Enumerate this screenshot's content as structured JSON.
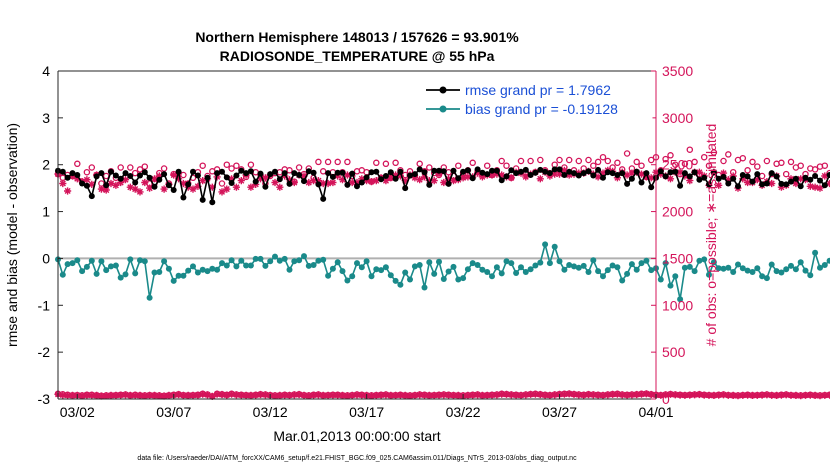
{
  "chart_data": {
    "type": "line",
    "title_line1": "Northern Hemisphere 148013 / 157626 = 93.901%",
    "title_line2": "RADIOSONDE_TEMPERATURE @ 55 hPa",
    "xlabel": "Mar.01,2013 00:00:00 start",
    "ylabel_left": "rmse and bias (model - observation)",
    "ylabel_right": "# of obs: o=possible; ∗=assimilated",
    "footnote": "data file: /Users/raeder/DAI/ATM_forcXX/CAM6_setup/f.e21.FHIST_BGC.f09_025.CAM6assim.011/Diags_NTrS_2013-03/obs_diag_output.nc",
    "xlim": [
      0,
      31
    ],
    "xticks": [
      1,
      6,
      11,
      16,
      21,
      26,
      31
    ],
    "xtick_labels": [
      "03/02",
      "03/07",
      "03/12",
      "03/17",
      "03/22",
      "03/27",
      "04/01"
    ],
    "ylim_left": [
      -3,
      4
    ],
    "yticks_left": [
      "-3",
      "-2",
      "-1",
      "0",
      "1",
      "2",
      "3",
      "4"
    ],
    "ylim_right": [
      0,
      3500
    ],
    "yticks_right": [
      "0",
      "500",
      "1000",
      "1500",
      "2000",
      "2500",
      "3000",
      "3500"
    ],
    "x_step_days": 0.25,
    "colors": {
      "rmse": "#000000",
      "bias": "#1a8a8a",
      "obs": "#d4145a",
      "zero_line": "#b0b0b0"
    },
    "legend": {
      "position": "top-right",
      "items": [
        {
          "label": "rmse grand pr = 1.7962",
          "series": "rmse"
        },
        {
          "label": "bias grand pr = -0.19128",
          "series": "bias"
        }
      ]
    },
    "series": [
      {
        "name": "rmse grand pr = 1.7962",
        "axis": "left",
        "values": [
          1.87,
          1.85,
          1.72,
          1.82,
          1.78,
          1.6,
          1.55,
          1.33,
          1.75,
          1.82,
          1.56,
          1.85,
          1.77,
          1.7,
          1.82,
          1.76,
          1.62,
          1.77,
          1.84,
          1.72,
          1.53,
          1.68,
          1.8,
          1.56,
          1.46,
          1.85,
          1.3,
          1.58,
          1.85,
          1.77,
          1.25,
          1.72,
          1.2,
          1.82,
          1.85,
          1.73,
          1.61,
          1.77,
          1.87,
          1.82,
          1.86,
          1.64,
          1.81,
          1.53,
          1.8,
          1.85,
          1.69,
          1.82,
          1.59,
          1.82,
          1.78,
          1.65,
          1.86,
          1.83,
          1.58,
          1.27,
          1.82,
          1.74,
          1.83,
          1.83,
          1.57,
          1.81,
          1.54,
          1.62,
          1.73,
          1.84,
          1.85,
          1.69,
          1.76,
          1.84,
          1.7,
          1.85,
          1.5,
          1.77,
          1.8,
          1.9,
          1.84,
          1.57,
          1.87,
          1.87,
          1.86,
          1.59,
          1.87,
          1.71,
          1.85,
          1.88,
          1.71,
          1.9,
          1.83,
          1.8,
          1.87,
          1.87,
          1.67,
          1.75,
          1.88,
          1.82,
          1.85,
          1.89,
          1.78,
          1.83,
          1.89,
          1.85,
          1.82,
          1.9,
          1.9,
          1.78,
          1.85,
          1.82,
          1.77,
          1.82,
          1.86,
          1.77,
          1.89,
          1.72,
          1.84,
          1.82,
          1.78,
          1.82,
          1.59,
          1.7,
          1.85,
          1.62,
          1.82,
          1.52,
          1.72,
          1.86,
          1.75,
          1.84,
          1.85,
          1.55,
          1.82,
          1.75,
          1.84,
          1.68,
          1.72,
          1.58,
          1.84,
          1.7,
          1.74,
          1.6,
          1.7,
          1.54,
          1.78,
          1.75,
          1.64,
          1.8,
          1.58,
          1.6,
          1.82,
          1.75,
          1.59,
          1.58,
          1.64,
          1.7,
          1.54,
          1.72,
          1.68,
          1.76,
          1.66,
          1.56,
          1.78,
          1.72,
          1.8,
          1.85,
          1.9,
          1.94
        ]
      },
      {
        "name": "bias grand pr = -0.19128",
        "axis": "left",
        "values": [
          -0.02,
          -0.35,
          -0.12,
          -0.1,
          -0.04,
          -0.27,
          -0.18,
          -0.05,
          -0.33,
          -0.06,
          -0.25,
          -0.17,
          -0.15,
          -0.41,
          -0.34,
          -0.02,
          -0.32,
          -0.04,
          -0.06,
          -0.84,
          -0.3,
          -0.29,
          -0.06,
          -0.22,
          -0.48,
          -0.37,
          -0.37,
          -0.26,
          -0.17,
          -0.3,
          -0.24,
          -0.27,
          -0.22,
          -0.24,
          -0.1,
          -0.15,
          -0.04,
          -0.17,
          -0.05,
          -0.15,
          -0.15,
          -0.01,
          -0.01,
          -0.16,
          -0.06,
          0.04,
          -0.05,
          -0.01,
          -0.24,
          -0.06,
          -0.04,
          0.05,
          -0.16,
          -0.14,
          -0.05,
          -0.03,
          -0.37,
          -0.22,
          -0.08,
          -0.27,
          -0.47,
          -0.38,
          -0.1,
          -0.19,
          -0.06,
          -0.38,
          -0.23,
          -0.25,
          -0.19,
          -0.36,
          -0.48,
          -0.56,
          -0.3,
          -0.45,
          -0.17,
          -0.14,
          -0.62,
          -0.08,
          -0.33,
          -0.07,
          -0.44,
          -0.28,
          -0.18,
          -0.45,
          -0.42,
          -0.23,
          -0.1,
          -0.14,
          -0.24,
          -0.29,
          -0.38,
          -0.19,
          -0.32,
          -0.06,
          -0.1,
          -0.31,
          -0.19,
          -0.29,
          -0.23,
          -0.15,
          -0.09,
          0.3,
          -0.1,
          0.25,
          -0.06,
          -0.24,
          -0.14,
          -0.17,
          -0.2,
          -0.16,
          -0.29,
          -0.04,
          -0.27,
          -0.38,
          -0.25,
          -0.15,
          -0.19,
          -0.47,
          -0.33,
          -0.12,
          -0.24,
          -0.1,
          -0.05,
          -0.25,
          -0.21,
          -0.45,
          -0.1,
          -0.58,
          -0.38,
          -0.87,
          -0.2,
          -0.18,
          -0.27,
          -0.05,
          -0.02,
          -0.35,
          -0.08,
          -0.21,
          -0.22,
          -0.2,
          -0.29,
          -0.13,
          -0.21,
          -0.26,
          -0.29,
          -0.21,
          -0.38,
          -0.42,
          -0.13,
          -0.27,
          -0.3,
          -0.23,
          -0.16,
          -0.23,
          -0.08,
          -0.26,
          -0.36,
          0.12,
          -0.2,
          -0.14,
          -0.05,
          -0.29,
          -0.68,
          -0.33,
          -0.13,
          -0.35,
          -0.11,
          -0.1,
          -0.01,
          0.05
        ]
      },
      {
        "name": "",
        "axis": "right",
        "marker": "o",
        "values": [
          2400,
          2360,
          2390,
          2380,
          2510,
          2320,
          2420,
          2470,
          2390,
          2300,
          2380,
          2430,
          2360,
          2470,
          2370,
          2470,
          2410,
          2450,
          2480,
          2300,
          2300,
          2410,
          2460,
          2300,
          2400,
          2410,
          2390,
          2300,
          2360,
          2420,
          2490,
          2380,
          2430,
          2450,
          2300,
          2500,
          2460,
          2490,
          2450,
          2370,
          2500,
          2420,
          2390,
          2300,
          2380,
          2410,
          2420,
          2450,
          2440,
          2320,
          2470,
          2400,
          2460,
          2360,
          2530,
          2430,
          2530,
          2420,
          2530,
          2420,
          2530,
          2380,
          2430,
          2440,
          2420,
          2320,
          2520,
          2360,
          2510,
          2360,
          2520,
          2440,
          2390,
          2430,
          2380,
          2510,
          2430,
          2470,
          2410,
          2390,
          2470,
          2420,
          2380,
          2490,
          2410,
          2440,
          2520,
          2430,
          2390,
          2490,
          2390,
          2440,
          2540,
          2490,
          2360,
          2460,
          2540,
          2420,
          2540,
          2420,
          2550,
          2440,
          2410,
          2500,
          2550,
          2470,
          2550,
          2440,
          2540,
          2460,
          2550,
          2490,
          2530,
          2580,
          2540,
          2470,
          2520,
          2450,
          2620,
          2460,
          2530,
          2490,
          2370,
          2550,
          2580,
          2440,
          2560,
          2600,
          2500,
          2400,
          2510,
          2660,
          2530,
          2400,
          2580,
          2490,
          2630,
          2390,
          2540,
          2610,
          2420,
          2550,
          2570,
          2440,
          2530,
          2480,
          2380,
          2540,
          2400,
          2510,
          2520,
          2400,
          2530,
          2470,
          2490,
          2400,
          2460,
          2450,
          2480,
          2490,
          2410,
          2500,
          2450,
          2390,
          2420,
          2320,
          2320,
          2470,
          2400,
          2400,
          2440,
          2400
        ]
      },
      {
        "name": "",
        "axis": "right",
        "marker": "*",
        "values": [
          2400,
          2300,
          2220,
          2380,
          2350,
          2320,
          2340,
          2290,
          2390,
          2240,
          2230,
          2300,
          2280,
          2310,
          2340,
          2260,
          2240,
          2210,
          2310,
          2250,
          2350,
          2380,
          2240,
          2290,
          2390,
          2350,
          2300,
          2260,
          2240,
          2270,
          2330,
          2350,
          2260,
          2370,
          2210,
          2240,
          2350,
          2260,
          2330,
          2390,
          2260,
          2290,
          2350,
          2360,
          2390,
          2310,
          2260,
          2380,
          2340,
          2310,
          2390,
          2380,
          2310,
          2330,
          2330,
          2300,
          2300,
          2310,
          2380,
          2340,
          2390,
          2310,
          2310,
          2350,
          2330,
          2320,
          2330,
          2360,
          2330,
          2360,
          2390,
          2380,
          2330,
          2390,
          2360,
          2340,
          2370,
          2330,
          2330,
          2400,
          2310,
          2350,
          2330,
          2340,
          2360,
          2370,
          2370,
          2410,
          2370,
          2390,
          2390,
          2400,
          2390,
          2370,
          2360,
          2420,
          2410,
          2370,
          2400,
          2420,
          2350,
          2420,
          2380,
          2400,
          2400,
          2440,
          2390,
          2400,
          2410,
          2410,
          2430,
          2400,
          2370,
          2410,
          2440,
          2430,
          2360,
          2420,
          2390,
          2410,
          2420,
          2400,
          2370,
          2360,
          2420,
          2400,
          2380,
          2350,
          2420,
          2420,
          2380,
          2330,
          2420,
          2420,
          2380,
          2280,
          2420,
          2280,
          2410,
          2340,
          2380,
          2250,
          2350,
          2310,
          2310,
          2340,
          2280,
          2320,
          2300,
          2380,
          2260,
          2280,
          2350,
          2300,
          2350,
          2340,
          2270,
          2260,
          2250,
          2380,
          2300,
          2280,
          2290,
          2310,
          2200,
          2300,
          2330,
          2230,
          2280,
          2300,
          2320,
          2330
        ]
      },
      {
        "name": "",
        "axis": "right",
        "marker": "o",
        "values": [
          55,
          50,
          45,
          40,
          42,
          38,
          45,
          45,
          40,
          35,
          38,
          40,
          42,
          45,
          48,
          40,
          45,
          40,
          38,
          42,
          40,
          38,
          35,
          40,
          45,
          50,
          42,
          40,
          42,
          45,
          55,
          48,
          30,
          55,
          50,
          45,
          55,
          48,
          45,
          42,
          40,
          45,
          50,
          48,
          42,
          38,
          40,
          45,
          42,
          48,
          50,
          42,
          38,
          45,
          48,
          40,
          42,
          45,
          45,
          40,
          38,
          42,
          48,
          45,
          40,
          38,
          42,
          45,
          48,
          40,
          42,
          45,
          40,
          38,
          42,
          48,
          45,
          40,
          42,
          45,
          48,
          45,
          42,
          40,
          38,
          42,
          45,
          48,
          40,
          42,
          45,
          48,
          55,
          52,
          48,
          45,
          42,
          48,
          52,
          55,
          50,
          45,
          42,
          48,
          52,
          55,
          58,
          52,
          48,
          45,
          50,
          48,
          45,
          42,
          48,
          52,
          55,
          48,
          45,
          48,
          50,
          55,
          58,
          50,
          45,
          42,
          48,
          52,
          48,
          45,
          42,
          45,
          48,
          50,
          45,
          42,
          40,
          45,
          48,
          42,
          40,
          38,
          42,
          45,
          40,
          42,
          45,
          48,
          42,
          40,
          45,
          48,
          42,
          40,
          38,
          42,
          45,
          40,
          38,
          42,
          45,
          48,
          40,
          38,
          42,
          45,
          40,
          42,
          38,
          35
        ]
      },
      {
        "name": "",
        "axis": "right",
        "marker": "*",
        "values": [
          50,
          42,
          40,
          38,
          40,
          35,
          42,
          40,
          38,
          32,
          35,
          38,
          40,
          42,
          45,
          38,
          40,
          38,
          35,
          40,
          38,
          35,
          32,
          38,
          42,
          48,
          40,
          38,
          40,
          42,
          52,
          45,
          28,
          52,
          48,
          42,
          52,
          45,
          42,
          40,
          38,
          42,
          48,
          45,
          40,
          35,
          38,
          42,
          40,
          45,
          48,
          40,
          35,
          42,
          45,
          38,
          40,
          42,
          42,
          38,
          35,
          40,
          45,
          42,
          38,
          35,
          40,
          42,
          45,
          38,
          40,
          42,
          38,
          35,
          40,
          45,
          42,
          38,
          40,
          42,
          45,
          42,
          40,
          38,
          35,
          40,
          42,
          45,
          38,
          40,
          42,
          45,
          52,
          50,
          45,
          42,
          40,
          45,
          50,
          52,
          48,
          42,
          40,
          45,
          50,
          52,
          55,
          50,
          45,
          42,
          48,
          45,
          42,
          40,
          45,
          50,
          52,
          45,
          42,
          45,
          48,
          52,
          55,
          48,
          42,
          40,
          45,
          50,
          45,
          42,
          40,
          42,
          45,
          48,
          42,
          40,
          38,
          42,
          45,
          40,
          38,
          35,
          40,
          42,
          38,
          40,
          42,
          45,
          40,
          38,
          42,
          45,
          40,
          38,
          35,
          40,
          42,
          38,
          35,
          40,
          42,
          45,
          38,
          35,
          40,
          42,
          38,
          40,
          35,
          32
        ]
      }
    ]
  }
}
